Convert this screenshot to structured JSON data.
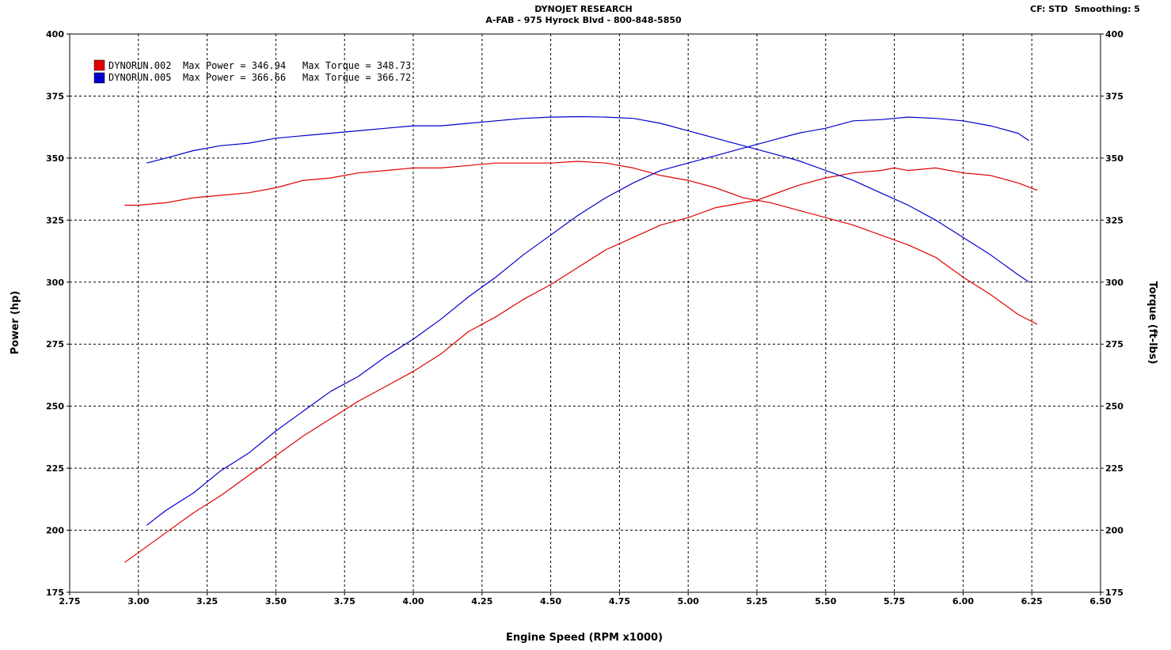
{
  "header": {
    "title": "DYNOJET RESEARCH",
    "subtitle": "A-FAB - 975 Hyrock Blvd - 800-848-5850",
    "cf": "CF: STD",
    "smoothing": "Smoothing: 5"
  },
  "chart_data": {
    "type": "line",
    "xlabel": "Engine Speed (RPM x1000)",
    "ylabel_left": "Power (hp)",
    "ylabel_right": "Torque (ft-lbs)",
    "xlim": [
      2.75,
      6.5
    ],
    "ylim": [
      175,
      400
    ],
    "x_ticks": [
      "2.75",
      "3.00",
      "3.25",
      "3.50",
      "3.75",
      "4.00",
      "4.25",
      "4.50",
      "4.75",
      "5.00",
      "5.25",
      "5.50",
      "5.75",
      "6.00",
      "6.25",
      "6.50"
    ],
    "y_ticks": [
      "175",
      "200",
      "225",
      "250",
      "275",
      "300",
      "325",
      "350",
      "375",
      "400"
    ],
    "grid": true,
    "grid_style": "dashed",
    "legend_position": "top-left",
    "legend": [
      {
        "run": "DYNORUN.002",
        "power_label": "Max Power = 346.94",
        "torque_label": "Max Torque = 348.73",
        "color": "#e00000"
      },
      {
        "run": "DYNORUN.005",
        "power_label": "Max Power = 366.66",
        "torque_label": "Max Torque = 366.72",
        "color": "#0000cc"
      }
    ],
    "series": [
      {
        "name": "DYNORUN.002",
        "measure": "power",
        "color": "#e00000",
        "x": [
          2.95,
          3.0,
          3.1,
          3.2,
          3.3,
          3.4,
          3.5,
          3.6,
          3.7,
          3.8,
          3.9,
          4.0,
          4.1,
          4.2,
          4.3,
          4.4,
          4.5,
          4.6,
          4.7,
          4.8,
          4.9,
          5.0,
          5.1,
          5.2,
          5.25,
          5.3,
          5.4,
          5.5,
          5.6,
          5.7,
          5.75,
          5.8,
          5.9,
          6.0,
          6.1,
          6.2,
          6.27
        ],
        "y": [
          187,
          191,
          199,
          207,
          214,
          222,
          230,
          238,
          245,
          252,
          258,
          264,
          271,
          280,
          286,
          293,
          299,
          306,
          313,
          318,
          323,
          326,
          330,
          332,
          333,
          335,
          339,
          342,
          344,
          345,
          346,
          345,
          346,
          344,
          343,
          340,
          337
        ]
      },
      {
        "name": "DYNORUN.002",
        "measure": "torque",
        "color": "#e00000",
        "x": [
          2.95,
          3.0,
          3.1,
          3.2,
          3.3,
          3.4,
          3.5,
          3.6,
          3.7,
          3.8,
          3.9,
          4.0,
          4.1,
          4.2,
          4.3,
          4.4,
          4.5,
          4.6,
          4.7,
          4.8,
          4.9,
          5.0,
          5.1,
          5.2,
          5.3,
          5.4,
          5.5,
          5.6,
          5.7,
          5.8,
          5.9,
          6.0,
          6.1,
          6.2,
          6.27
        ],
        "y": [
          331,
          331,
          332,
          334,
          335,
          336,
          338,
          341,
          342,
          344,
          345,
          346,
          346,
          347,
          348,
          348,
          348,
          348.7,
          348,
          346,
          343,
          341,
          338,
          334,
          332,
          329,
          326,
          323,
          319,
          315,
          310,
          302,
          295,
          287,
          283
        ]
      },
      {
        "name": "DYNORUN.005",
        "measure": "power",
        "color": "#0000cc",
        "x": [
          3.03,
          3.1,
          3.2,
          3.3,
          3.4,
          3.5,
          3.6,
          3.7,
          3.8,
          3.9,
          4.0,
          4.1,
          4.2,
          4.3,
          4.4,
          4.5,
          4.6,
          4.7,
          4.8,
          4.9,
          5.0,
          5.1,
          5.2,
          5.3,
          5.4,
          5.5,
          5.6,
          5.7,
          5.8,
          5.9,
          6.0,
          6.1,
          6.2,
          6.24
        ],
        "y": [
          202,
          208,
          215,
          224,
          231,
          240,
          248,
          256,
          262,
          270,
          277,
          285,
          294,
          302,
          311,
          319,
          327,
          334,
          340,
          345,
          348,
          351,
          354,
          357,
          360,
          362,
          365,
          365.5,
          366.5,
          366,
          365,
          363,
          360,
          357
        ]
      },
      {
        "name": "DYNORUN.005",
        "measure": "torque",
        "color": "#0000cc",
        "x": [
          3.03,
          3.1,
          3.2,
          3.3,
          3.4,
          3.5,
          3.6,
          3.7,
          3.8,
          3.9,
          4.0,
          4.1,
          4.2,
          4.3,
          4.4,
          4.5,
          4.6,
          4.7,
          4.8,
          4.9,
          5.0,
          5.1,
          5.2,
          5.3,
          5.4,
          5.5,
          5.6,
          5.7,
          5.8,
          5.9,
          6.0,
          6.1,
          6.2,
          6.24
        ],
        "y": [
          348,
          350,
          353,
          355,
          356,
          358,
          359,
          360,
          361,
          362,
          363,
          363,
          364,
          365,
          366,
          366.5,
          366.7,
          366.5,
          366,
          364,
          361,
          358,
          355,
          352,
          349,
          345,
          341,
          336,
          331,
          325,
          318,
          311,
          303,
          300
        ]
      }
    ]
  }
}
